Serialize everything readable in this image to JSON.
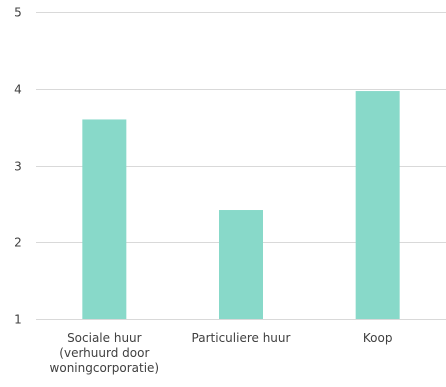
{
  "chart_data": {
    "type": "bar",
    "categories": [
      [
        "Sociale huur",
        "(verhuurd door",
        "woningcorporatie)"
      ],
      [
        "Particuliere huur"
      ],
      [
        "Koop"
      ]
    ],
    "values": [
      3.6,
      2.42,
      3.97
    ],
    "y_ticks": [
      "1",
      "2",
      "3",
      "4",
      "5"
    ],
    "ylim": [
      1,
      5
    ],
    "grid": true,
    "colors": {
      "bar": "#88d9c9",
      "grid": "#d9d9d9",
      "text": "#404040"
    }
  }
}
